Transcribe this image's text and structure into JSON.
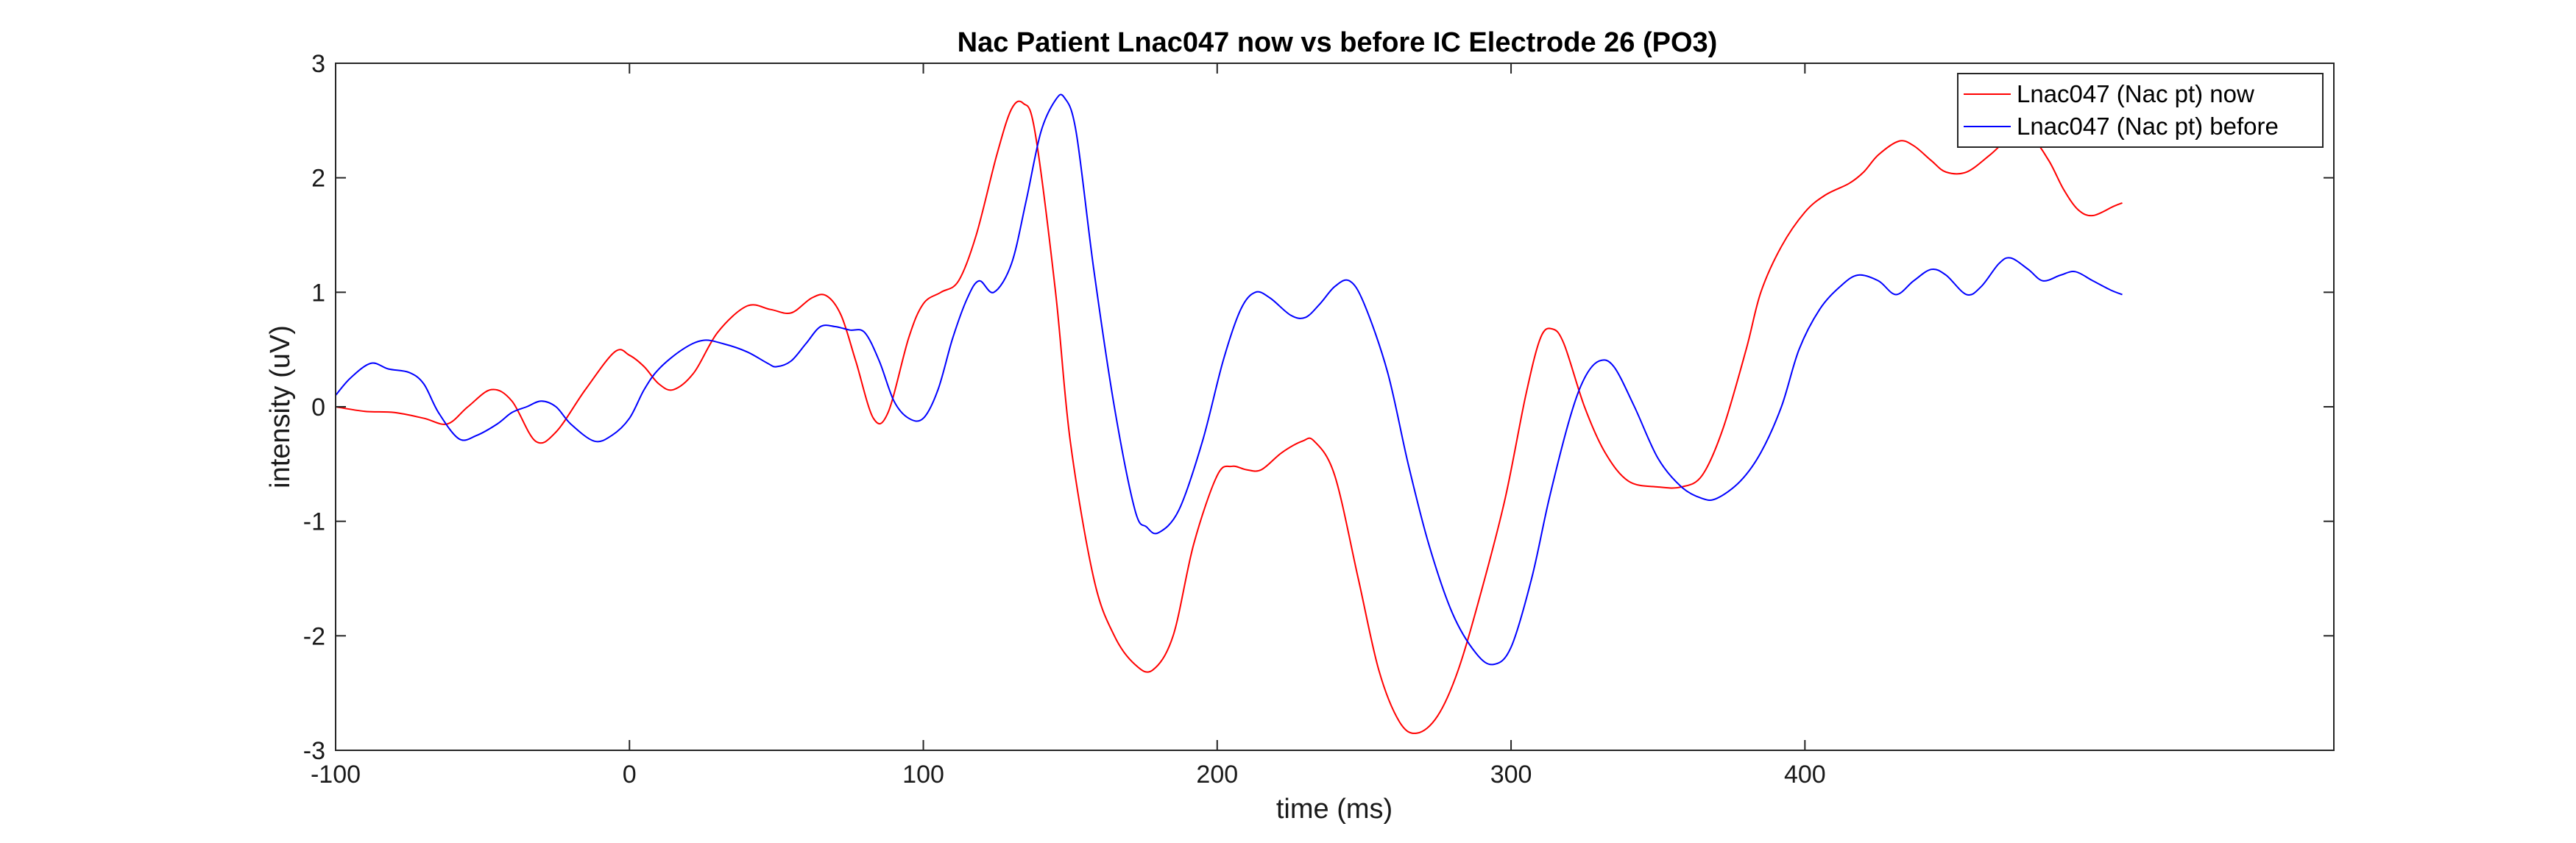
{
  "chart_data": {
    "type": "line",
    "title": "Nac Patient Lnac047 now vs before IC Electrode 26 (PO3)",
    "xlabel": "time (ms)",
    "ylabel": "intensity (uV)",
    "xlim": [
      -100,
      580
    ],
    "ylim": [
      -3,
      3
    ],
    "xticks": [
      -100,
      0,
      100,
      200,
      300,
      400
    ],
    "yticks": [
      -3,
      -2,
      -1,
      0,
      1,
      2,
      3
    ],
    "grid": false,
    "legend": "top-right",
    "series": [
      {
        "name": "Lnac047 (Nac pt) now",
        "color": "#ff0000",
        "points": [
          [
            -100,
            0.0
          ],
          [
            -90,
            -0.04
          ],
          [
            -80,
            -0.05
          ],
          [
            -70,
            -0.1
          ],
          [
            -62,
            -0.15
          ],
          [
            -55,
            0.0
          ],
          [
            -47,
            0.15
          ],
          [
            -40,
            0.05
          ],
          [
            -32,
            -0.3
          ],
          [
            -25,
            -0.22
          ],
          [
            -15,
            0.15
          ],
          [
            -5,
            0.48
          ],
          [
            0,
            0.45
          ],
          [
            5,
            0.35
          ],
          [
            10,
            0.2
          ],
          [
            15,
            0.15
          ],
          [
            22,
            0.3
          ],
          [
            30,
            0.65
          ],
          [
            40,
            0.88
          ],
          [
            48,
            0.85
          ],
          [
            55,
            0.82
          ],
          [
            62,
            0.95
          ],
          [
            67,
            0.97
          ],
          [
            72,
            0.8
          ],
          [
            77,
            0.4
          ],
          [
            83,
            -0.1
          ],
          [
            88,
            -0.05
          ],
          [
            95,
            0.6
          ],
          [
            100,
            0.9
          ],
          [
            106,
            1.0
          ],
          [
            112,
            1.1
          ],
          [
            118,
            1.5
          ],
          [
            125,
            2.2
          ],
          [
            130,
            2.6
          ],
          [
            134,
            2.65
          ],
          [
            138,
            2.4
          ],
          [
            145,
            1.0
          ],
          [
            150,
            -0.3
          ],
          [
            158,
            -1.5
          ],
          [
            165,
            -2.0
          ],
          [
            172,
            -2.25
          ],
          [
            178,
            -2.3
          ],
          [
            185,
            -2.0
          ],
          [
            192,
            -1.2
          ],
          [
            200,
            -0.6
          ],
          [
            205,
            -0.52
          ],
          [
            210,
            -0.55
          ],
          [
            215,
            -0.55
          ],
          [
            222,
            -0.4
          ],
          [
            229,
            -0.3
          ],
          [
            233,
            -0.3
          ],
          [
            240,
            -0.6
          ],
          [
            248,
            -1.5
          ],
          [
            255,
            -2.3
          ],
          [
            262,
            -2.75
          ],
          [
            268,
            -2.85
          ],
          [
            275,
            -2.7
          ],
          [
            282,
            -2.3
          ],
          [
            290,
            -1.6
          ],
          [
            298,
            -0.8
          ],
          [
            305,
            0.1
          ],
          [
            310,
            0.6
          ],
          [
            314,
            0.68
          ],
          [
            318,
            0.55
          ],
          [
            325,
            0.0
          ],
          [
            332,
            -0.4
          ],
          [
            340,
            -0.65
          ],
          [
            350,
            -0.7
          ],
          [
            358,
            -0.7
          ],
          [
            365,
            -0.6
          ],
          [
            372,
            -0.2
          ],
          [
            380,
            0.5
          ],
          [
            385,
            1.0
          ],
          [
            392,
            1.4
          ],
          [
            400,
            1.7
          ],
          [
            407,
            1.85
          ],
          [
            415,
            1.95
          ],
          [
            420,
            2.05
          ],
          [
            425,
            2.2
          ],
          [
            432,
            2.32
          ],
          [
            437,
            2.28
          ],
          [
            443,
            2.15
          ],
          [
            448,
            2.05
          ],
          [
            455,
            2.05
          ],
          [
            463,
            2.2
          ],
          [
            470,
            2.35
          ],
          [
            477,
            2.35
          ],
          [
            483,
            2.15
          ],
          [
            488,
            1.9
          ],
          [
            493,
            1.72
          ],
          [
            498,
            1.67
          ],
          [
            505,
            1.75
          ],
          [
            508,
            1.78
          ]
        ]
      },
      {
        "name": "Lnac047 (Nac pt) before",
        "color": "#0000ff",
        "points": [
          [
            -100,
            0.1
          ],
          [
            -95,
            0.25
          ],
          [
            -88,
            0.38
          ],
          [
            -82,
            0.33
          ],
          [
            -75,
            0.3
          ],
          [
            -70,
            0.2
          ],
          [
            -65,
            -0.05
          ],
          [
            -58,
            -0.28
          ],
          [
            -52,
            -0.25
          ],
          [
            -45,
            -0.15
          ],
          [
            -40,
            -0.05
          ],
          [
            -35,
            0.0
          ],
          [
            -30,
            0.05
          ],
          [
            -25,
            0.0
          ],
          [
            -20,
            -0.15
          ],
          [
            -12,
            -0.3
          ],
          [
            -6,
            -0.25
          ],
          [
            0,
            -0.1
          ],
          [
            5,
            0.15
          ],
          [
            10,
            0.33
          ],
          [
            18,
            0.5
          ],
          [
            25,
            0.58
          ],
          [
            32,
            0.55
          ],
          [
            40,
            0.48
          ],
          [
            47,
            0.38
          ],
          [
            50,
            0.35
          ],
          [
            55,
            0.4
          ],
          [
            60,
            0.55
          ],
          [
            65,
            0.7
          ],
          [
            70,
            0.7
          ],
          [
            75,
            0.67
          ],
          [
            80,
            0.65
          ],
          [
            85,
            0.4
          ],
          [
            90,
            0.05
          ],
          [
            95,
            -0.1
          ],
          [
            100,
            -0.1
          ],
          [
            105,
            0.15
          ],
          [
            110,
            0.6
          ],
          [
            115,
            0.95
          ],
          [
            119,
            1.1
          ],
          [
            124,
            1.0
          ],
          [
            130,
            1.25
          ],
          [
            135,
            1.8
          ],
          [
            140,
            2.4
          ],
          [
            145,
            2.68
          ],
          [
            148,
            2.7
          ],
          [
            152,
            2.4
          ],
          [
            158,
            1.2
          ],
          [
            165,
            0.0
          ],
          [
            172,
            -0.9
          ],
          [
            176,
            -1.05
          ],
          [
            180,
            -1.1
          ],
          [
            187,
            -0.9
          ],
          [
            195,
            -0.3
          ],
          [
            202,
            0.4
          ],
          [
            208,
            0.85
          ],
          [
            213,
            1.0
          ],
          [
            218,
            0.95
          ],
          [
            225,
            0.8
          ],
          [
            230,
            0.78
          ],
          [
            235,
            0.9
          ],
          [
            240,
            1.05
          ],
          [
            245,
            1.1
          ],
          [
            250,
            0.9
          ],
          [
            258,
            0.3
          ],
          [
            265,
            -0.5
          ],
          [
            272,
            -1.2
          ],
          [
            280,
            -1.8
          ],
          [
            288,
            -2.15
          ],
          [
            294,
            -2.25
          ],
          [
            300,
            -2.1
          ],
          [
            307,
            -1.5
          ],
          [
            313,
            -0.8
          ],
          [
            320,
            -0.1
          ],
          [
            325,
            0.25
          ],
          [
            330,
            0.4
          ],
          [
            335,
            0.35
          ],
          [
            342,
            0.0
          ],
          [
            350,
            -0.45
          ],
          [
            358,
            -0.7
          ],
          [
            365,
            -0.8
          ],
          [
            370,
            -0.8
          ],
          [
            378,
            -0.65
          ],
          [
            385,
            -0.4
          ],
          [
            392,
            0.0
          ],
          [
            398,
            0.5
          ],
          [
            405,
            0.85
          ],
          [
            412,
            1.05
          ],
          [
            418,
            1.15
          ],
          [
            425,
            1.1
          ],
          [
            431,
            0.98
          ],
          [
            437,
            1.1
          ],
          [
            443,
            1.2
          ],
          [
            448,
            1.15
          ],
          [
            455,
            0.98
          ],
          [
            460,
            1.05
          ],
          [
            466,
            1.25
          ],
          [
            470,
            1.3
          ],
          [
            476,
            1.2
          ],
          [
            481,
            1.1
          ],
          [
            487,
            1.15
          ],
          [
            492,
            1.18
          ],
          [
            498,
            1.1
          ],
          [
            504,
            1.02
          ],
          [
            508,
            0.98
          ]
        ]
      }
    ]
  }
}
